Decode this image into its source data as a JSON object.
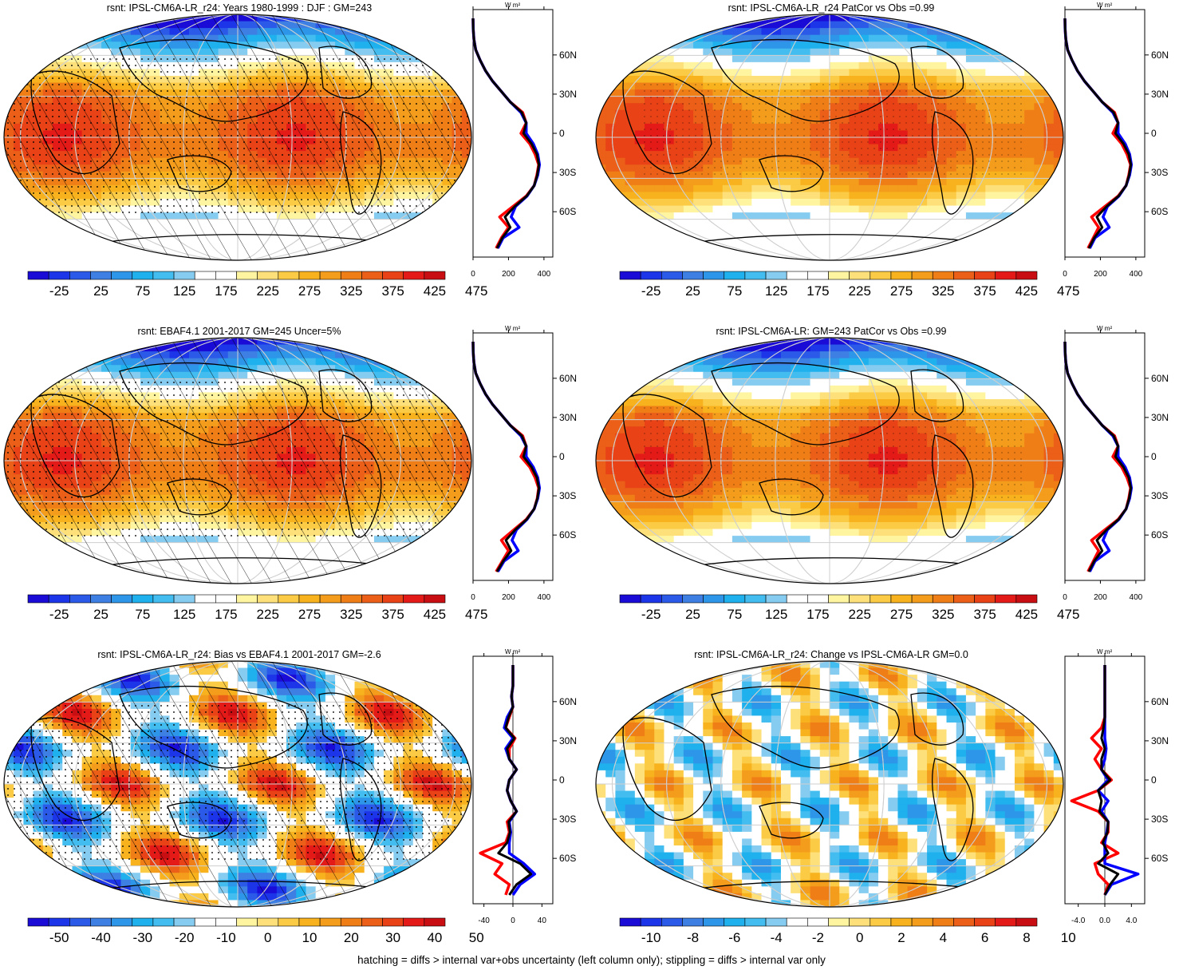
{
  "panels": [
    {
      "title": "rsnt: IPSL-CM6A-LR_r24: Years 1980-1999 : DJF : GM=243",
      "field": "abs",
      "hatching": true,
      "stippling": "dense",
      "colorbar_labels": [
        "-25",
        "25",
        "75",
        "125",
        "175",
        "225",
        "275",
        "325",
        "375",
        "425",
        "475"
      ],
      "profile": {
        "unit": "W m²",
        "xticks": [
          "0",
          "200",
          "400"
        ],
        "xlim": [
          0,
          450
        ],
        "yticks": [
          "60N",
          "30N",
          "0",
          "30S",
          "60S"
        ]
      }
    },
    {
      "title": "rsnt: IPSL-CM6A-LR_r24 PatCor vs Obs =0.99",
      "field": "abs",
      "hatching": false,
      "stippling": "sparse",
      "colorbar_labels": [
        "-25",
        "25",
        "75",
        "125",
        "175",
        "225",
        "275",
        "325",
        "375",
        "425",
        "475"
      ],
      "profile": {
        "unit": "W m²",
        "xticks": [
          "0",
          "200",
          "400"
        ],
        "xlim": [
          0,
          450
        ],
        "yticks": [
          "60N",
          "30N",
          "0",
          "30S",
          "60S"
        ]
      }
    },
    {
      "title": "rsnt: EBAF4.1 2001-2017 GM=245 Uncer=5%",
      "field": "abs",
      "hatching": true,
      "stippling": "dense",
      "colorbar_labels": [
        "-25",
        "25",
        "75",
        "125",
        "175",
        "225",
        "275",
        "325",
        "375",
        "425",
        "475"
      ],
      "profile": {
        "unit": "W m²",
        "xticks": [
          "0",
          "200",
          "400"
        ],
        "xlim": [
          0,
          450
        ],
        "yticks": [
          "60N",
          "30N",
          "0",
          "30S",
          "60S"
        ]
      }
    },
    {
      "title": "rsnt: IPSL-CM6A-LR: GM=243 PatCor vs Obs =0.99",
      "field": "abs",
      "hatching": false,
      "stippling": "sparse",
      "colorbar_labels": [
        "-25",
        "25",
        "75",
        "125",
        "175",
        "225",
        "275",
        "325",
        "375",
        "425",
        "475"
      ],
      "profile": {
        "unit": "W m²",
        "xticks": [
          "0",
          "200",
          "400"
        ],
        "xlim": [
          0,
          450
        ],
        "yticks": [
          "60N",
          "30N",
          "0",
          "30S",
          "60S"
        ]
      }
    },
    {
      "title": "rsnt: IPSL-CM6A-LR_r24: Bias vs EBAF4.1 2001-2017 GM=-2.6",
      "field": "bias",
      "hatching": true,
      "stippling": "dense",
      "colorbar_labels": [
        "-50",
        "-40",
        "-30",
        "-20",
        "-10",
        "0",
        "10",
        "20",
        "30",
        "40",
        "50"
      ],
      "profile": {
        "unit": "W m²",
        "xticks": [
          "-40",
          "0",
          "40"
        ],
        "xlim": [
          -55,
          55
        ],
        "yticks": [
          "60N",
          "30N",
          "0",
          "30S",
          "60S"
        ]
      }
    },
    {
      "title": "rsnt: IPSL-CM6A-LR_r24: Change vs IPSL-CM6A-LR GM=0.0",
      "field": "change",
      "hatching": false,
      "stippling": "none",
      "colorbar_labels": [
        "-10",
        "-8",
        "-6",
        "-4",
        "-2",
        "0",
        "2",
        "4",
        "6",
        "8",
        "10"
      ],
      "profile": {
        "unit": "W m²",
        "xticks": [
          "-4.0",
          "0.0",
          "4.0"
        ],
        "xlim": [
          -6,
          6
        ],
        "yticks": [
          "60N",
          "30N",
          "0",
          "30S",
          "60S"
        ]
      }
    }
  ],
  "colorbar": {
    "colors": [
      "#1a0bd6",
      "#1c35e8",
      "#2b5ae8",
      "#3d7fe3",
      "#2e96e8",
      "#1fb1ee",
      "#43bdef",
      "#86ccf0",
      "#ffffff",
      "#ffffff",
      "#fff5a0",
      "#fde07a",
      "#fbcb45",
      "#f7b21e",
      "#f49c1b",
      "#ef7e17",
      "#eb5f18",
      "#e84216",
      "#e31a17",
      "#c80e12"
    ]
  },
  "chart_data": [
    {
      "type": "line",
      "title": "rsnt: IPSL-CM6A-LR_r24: Years 1980-1999 : DJF : GM=243",
      "xlabel": "W m²",
      "x_axis": "lat",
      "lat": [
        -88,
        -80,
        -72,
        -64,
        -56,
        -48,
        -40,
        -32,
        -24,
        -16,
        -8,
        0,
        8,
        16,
        24,
        32,
        40,
        48,
        56,
        64,
        72,
        80,
        88
      ],
      "series": [
        {
          "color": "#ff0000",
          "values": [
            130,
            160,
            200,
            150,
            225,
            300,
            345,
            360,
            370,
            350,
            320,
            270,
            300,
            280,
            210,
            160,
            110,
            70,
            40,
            15,
            5,
            1,
            0
          ]
        },
        {
          "color": "#0000ff",
          "values": [
            140,
            170,
            260,
            215,
            240,
            305,
            345,
            365,
            375,
            365,
            340,
            300,
            300,
            270,
            210,
            160,
            110,
            70,
            40,
            15,
            5,
            1,
            0
          ]
        },
        {
          "color": "#000000",
          "values": [
            135,
            165,
            210,
            180,
            235,
            303,
            345,
            362,
            372,
            360,
            330,
            285,
            300,
            275,
            210,
            160,
            110,
            70,
            40,
            15,
            5,
            1,
            0
          ]
        }
      ],
      "xlim": [
        0,
        450
      ],
      "xticks": [
        0,
        200,
        400
      ]
    },
    {
      "type": "line",
      "title": "rsnt: IPSL-CM6A-LR_r24 PatCor vs Obs =0.99",
      "xlabel": "W m²",
      "x_axis": "lat",
      "lat": [
        -88,
        -80,
        -72,
        -64,
        -56,
        -48,
        -40,
        -32,
        -24,
        -16,
        -8,
        0,
        8,
        16,
        24,
        32,
        40,
        48,
        56,
        64,
        72,
        80,
        88
      ],
      "series": [
        {
          "color": "#ff0000",
          "values": [
            130,
            160,
            190,
            150,
            225,
            300,
            345,
            360,
            370,
            350,
            320,
            270,
            300,
            280,
            210,
            160,
            110,
            70,
            40,
            15,
            5,
            1,
            0
          ]
        },
        {
          "color": "#0000ff",
          "values": [
            140,
            170,
            250,
            215,
            240,
            305,
            345,
            365,
            375,
            365,
            340,
            300,
            300,
            270,
            210,
            160,
            110,
            70,
            40,
            15,
            5,
            1,
            0
          ]
        },
        {
          "color": "#000000",
          "values": [
            135,
            165,
            210,
            180,
            235,
            303,
            345,
            362,
            372,
            360,
            330,
            285,
            300,
            275,
            210,
            160,
            110,
            70,
            40,
            15,
            5,
            1,
            0
          ]
        }
      ],
      "xlim": [
        0,
        450
      ],
      "xticks": [
        0,
        200,
        400
      ]
    },
    {
      "type": "line",
      "title": "rsnt: EBAF4.1 2001-2017 GM=245 Uncer=5%",
      "xlabel": "W m²",
      "x_axis": "lat",
      "lat": [
        -88,
        -80,
        -72,
        -64,
        -56,
        -48,
        -40,
        -32,
        -24,
        -16,
        -8,
        0,
        8,
        16,
        24,
        32,
        40,
        48,
        56,
        64,
        72,
        80,
        88
      ],
      "series": [
        {
          "color": "#ff0000",
          "values": [
            130,
            165,
            200,
            160,
            230,
            300,
            345,
            362,
            370,
            350,
            320,
            270,
            300,
            280,
            210,
            160,
            110,
            70,
            40,
            15,
            5,
            1,
            0
          ]
        },
        {
          "color": "#0000ff",
          "values": [
            140,
            175,
            255,
            220,
            245,
            305,
            345,
            365,
            375,
            365,
            340,
            300,
            300,
            270,
            210,
            160,
            110,
            70,
            40,
            15,
            5,
            1,
            0
          ]
        },
        {
          "color": "#000000",
          "values": [
            135,
            170,
            215,
            185,
            238,
            303,
            345,
            363,
            372,
            360,
            330,
            285,
            300,
            275,
            210,
            160,
            110,
            70,
            40,
            15,
            5,
            1,
            0
          ]
        }
      ],
      "xlim": [
        0,
        450
      ],
      "xticks": [
        0,
        200,
        400
      ]
    },
    {
      "type": "line",
      "title": "rsnt: IPSL-CM6A-LR: GM=243 PatCor vs Obs =0.99",
      "xlabel": "W m²",
      "x_axis": "lat",
      "lat": [
        -88,
        -80,
        -72,
        -64,
        -56,
        -48,
        -40,
        -32,
        -24,
        -16,
        -8,
        0,
        8,
        16,
        24,
        32,
        40,
        48,
        56,
        64,
        72,
        80,
        88
      ],
      "series": [
        {
          "color": "#ff0000",
          "values": [
            130,
            160,
            190,
            150,
            225,
            300,
            345,
            360,
            370,
            350,
            320,
            270,
            300,
            280,
            210,
            160,
            110,
            70,
            40,
            15,
            5,
            1,
            0
          ]
        },
        {
          "color": "#0000ff",
          "values": [
            140,
            170,
            250,
            215,
            240,
            305,
            345,
            365,
            375,
            365,
            340,
            300,
            300,
            270,
            210,
            160,
            110,
            70,
            40,
            15,
            5,
            1,
            0
          ]
        },
        {
          "color": "#000000",
          "values": [
            135,
            165,
            210,
            180,
            235,
            303,
            345,
            362,
            372,
            360,
            330,
            285,
            300,
            275,
            210,
            160,
            110,
            70,
            40,
            15,
            5,
            1,
            0
          ]
        }
      ],
      "xlim": [
        0,
        450
      ],
      "xticks": [
        0,
        200,
        400
      ]
    },
    {
      "type": "line",
      "title": "rsnt: IPSL-CM6A-LR_r24: Bias vs EBAF4.1 2001-2017 GM=-2.6",
      "xlabel": "W m²",
      "x_axis": "lat",
      "lat": [
        -88,
        -80,
        -72,
        -64,
        -56,
        -48,
        -40,
        -32,
        -24,
        -16,
        -8,
        0,
        8,
        16,
        24,
        32,
        40,
        48,
        56,
        64,
        72,
        80,
        88
      ],
      "series": [
        {
          "color": "#ff0000",
          "values": [
            -10,
            -5,
            -25,
            -15,
            -45,
            -10,
            -5,
            -8,
            5,
            -3,
            -8,
            -5,
            5,
            -5,
            -5,
            3,
            -10,
            -5,
            0,
            -2,
            0,
            0,
            0
          ]
        },
        {
          "color": "#0000ff",
          "values": [
            0,
            10,
            30,
            15,
            -5,
            -5,
            -3,
            -5,
            5,
            -3,
            -8,
            -5,
            5,
            -5,
            -10,
            0,
            -12,
            -8,
            0,
            -2,
            0,
            0,
            0
          ]
        },
        {
          "color": "#000000",
          "values": [
            -5,
            5,
            25,
            10,
            -20,
            -8,
            -4,
            -6,
            5,
            -3,
            -8,
            -5,
            5,
            -5,
            -8,
            2,
            -10,
            -6,
            0,
            -2,
            0,
            0,
            0
          ]
        }
      ],
      "xlim": [
        -55,
        55
      ],
      "xticks": [
        -40,
        0,
        40
      ]
    },
    {
      "type": "line",
      "title": "rsnt: IPSL-CM6A-LR_r24: Change vs IPSL-CM6A-LR GM=0.0",
      "xlabel": "W m²",
      "x_axis": "lat",
      "lat": [
        -88,
        -80,
        -72,
        -64,
        -56,
        -48,
        -40,
        -32,
        -24,
        -16,
        -8,
        0,
        8,
        16,
        24,
        32,
        40,
        48,
        56,
        64,
        72,
        80,
        88
      ],
      "series": [
        {
          "color": "#ff0000",
          "values": [
            0,
            0.5,
            -1,
            -1.5,
            2,
            -0.5,
            0.5,
            0.5,
            -1,
            -5,
            -1,
            1,
            -0.5,
            -1.5,
            -0.5,
            -2,
            -0.5,
            0,
            0,
            0,
            0,
            0,
            0
          ]
        },
        {
          "color": "#0000ff",
          "values": [
            0,
            1,
            5,
            0,
            0,
            0,
            0.3,
            0.5,
            -0.5,
            0.5,
            -1,
            0.5,
            -0.5,
            0,
            0.2,
            0,
            0,
            0,
            0,
            0,
            0,
            0,
            0
          ]
        },
        {
          "color": "#000000",
          "values": [
            0,
            0.8,
            2,
            -1,
            0.5,
            -0.3,
            0.4,
            0.5,
            -0.8,
            -0.5,
            -1,
            0.8,
            -0.5,
            -0.5,
            0,
            -0.5,
            -0.2,
            0,
            0,
            0,
            0,
            0,
            0
          ]
        }
      ],
      "xlim": [
        -6,
        6
      ],
      "xticks": [
        -4,
        0,
        4
      ]
    }
  ],
  "footer": "hatching = diffs > internal var+obs uncertainty (left column only); stippling = diffs > internal var only"
}
